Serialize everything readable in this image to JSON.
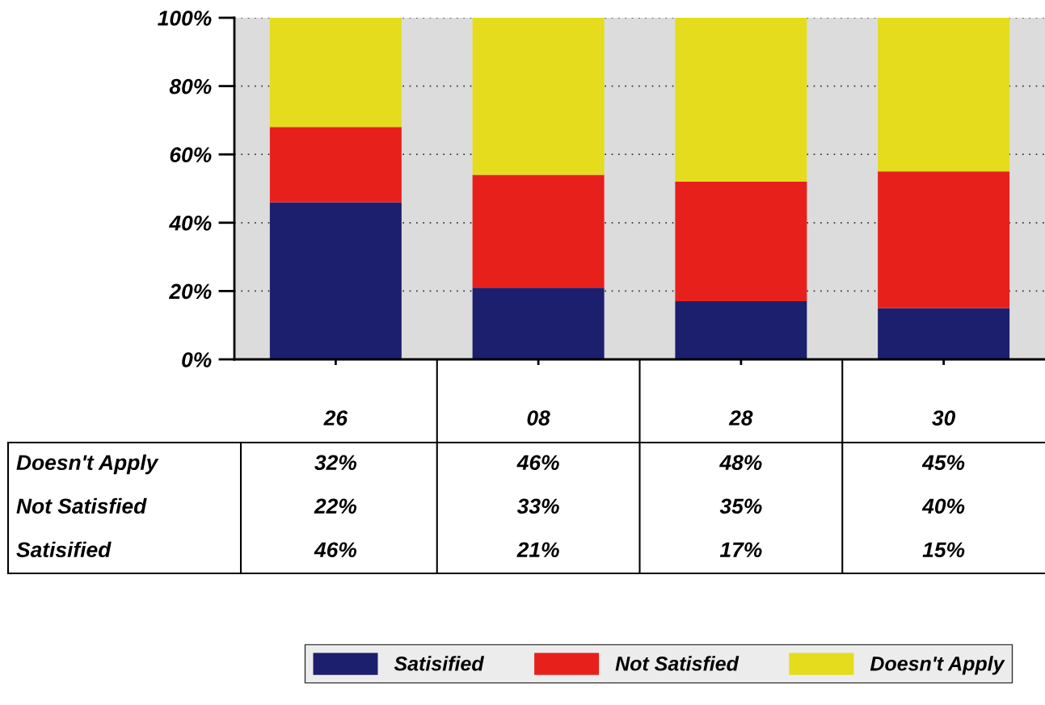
{
  "chart_data": {
    "type": "bar",
    "stacked": true,
    "categories": [
      "26",
      "08",
      "28",
      "30"
    ],
    "series": [
      {
        "name": "Satisified",
        "color": "#1c1f6e",
        "values": [
          46,
          21,
          17,
          15
        ],
        "value_labels": [
          "46%",
          "21%",
          "17%",
          "15%"
        ]
      },
      {
        "name": "Not Satisfied",
        "color": "#e8201c",
        "values": [
          22,
          33,
          35,
          40
        ],
        "value_labels": [
          "22%",
          "33%",
          "35%",
          "40%"
        ]
      },
      {
        "name": "Doesn't Apply",
        "color": "#e4dc1c",
        "values": [
          32,
          46,
          48,
          45
        ],
        "value_labels": [
          "32%",
          "46%",
          "48%",
          "45%"
        ]
      }
    ],
    "ylim": [
      0,
      100
    ],
    "yticks": [
      {
        "value": 0,
        "label": "0%"
      },
      {
        "value": 20,
        "label": "20%"
      },
      {
        "value": 40,
        "label": "40%"
      },
      {
        "value": 60,
        "label": "60%"
      },
      {
        "value": 80,
        "label": "80%"
      },
      {
        "value": 100,
        "label": "100%"
      }
    ],
    "grid": "y",
    "legend": "bottom"
  }
}
